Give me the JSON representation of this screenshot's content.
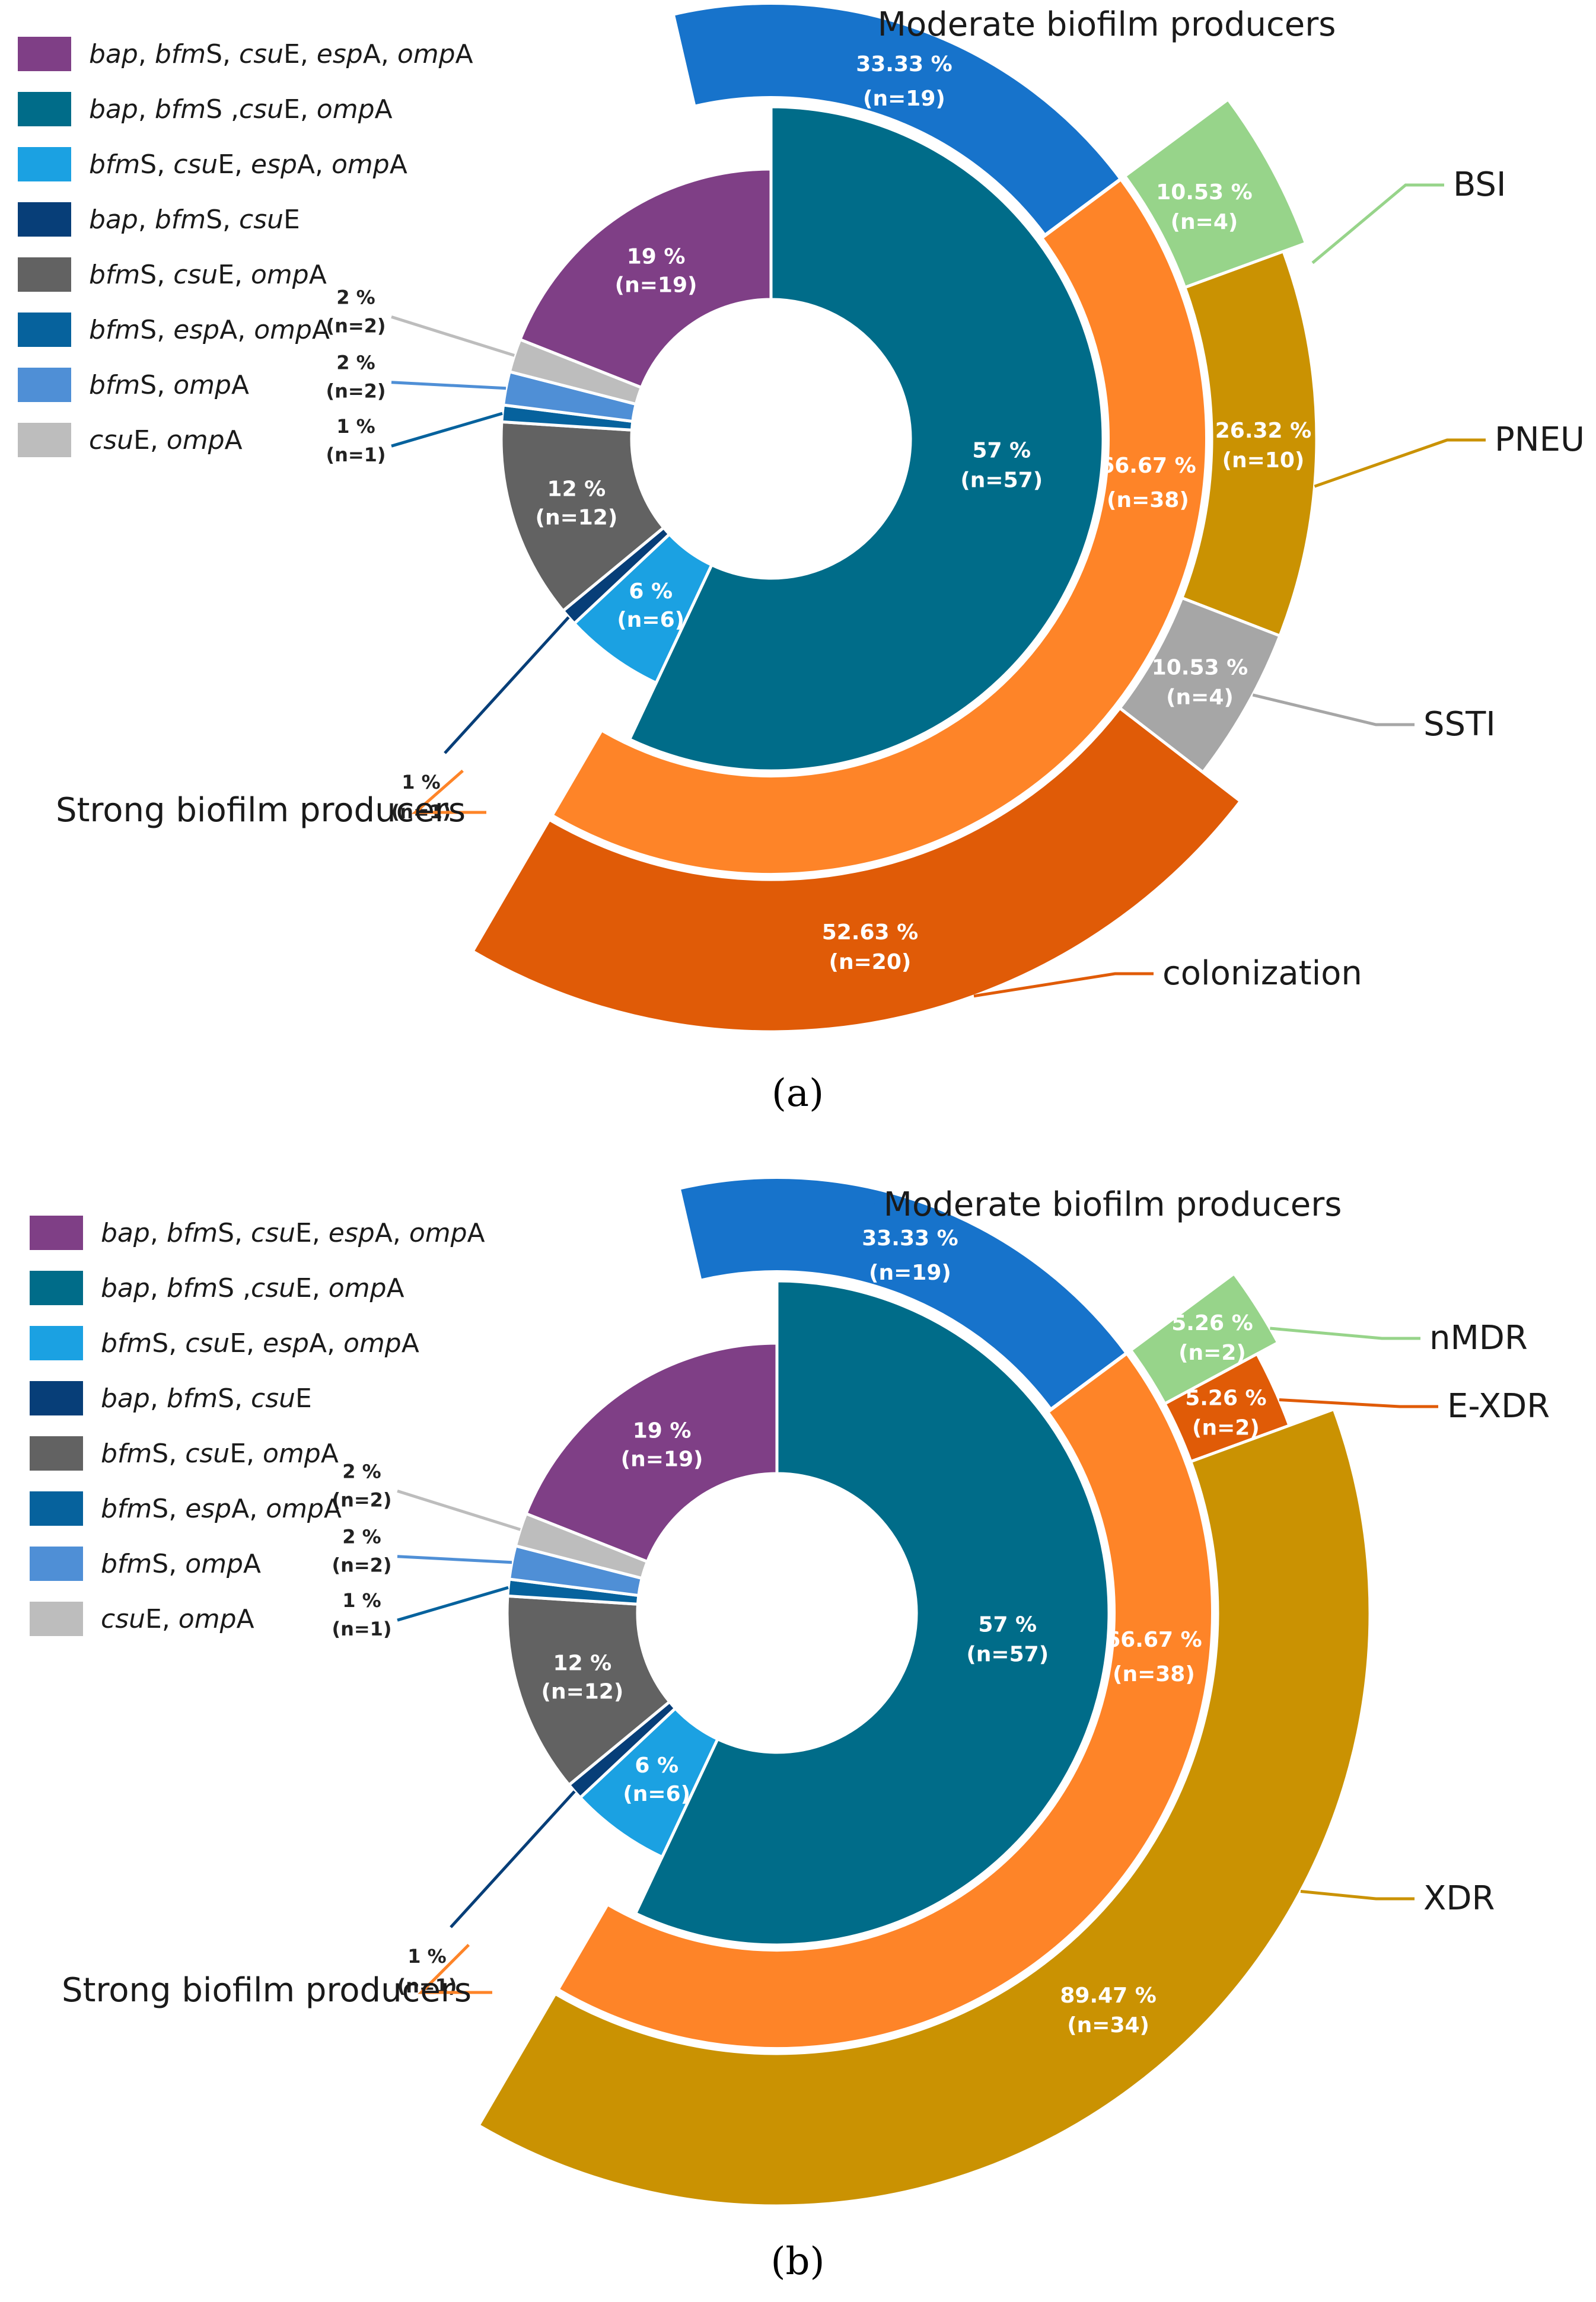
{
  "colors": {
    "bap_bfmS_csuE_espA_ompA": "#7F3F86",
    "bap_bfmS_csuE_ompA": "#006C89",
    "bfmS_csuE_espA_ompA": "#1BA1E2",
    "bap_bfmS_csuE": "#073E78",
    "bfmS_csuE_ompA": "#626262",
    "bfmS_espA_ompA": "#06629D",
    "bfmS_ompA": "#4F8FD6",
    "csuE_ompA": "#BDBDBD",
    "moderate": "#1773CB",
    "strong": "#FE8428",
    "BSI": "#97D48A",
    "PNEU": "#CA9202",
    "SSTI": "#A6A6A6",
    "colonization": "#E05B07",
    "nMDR": "#97D48A",
    "E_XDR": "#E05B07",
    "XDR": "#CA9202"
  },
  "legend": [
    {
      "key": "bap_bfmS_csuE_espA_ompA",
      "parts": [
        [
          "bap",
          1
        ],
        [
          ", ",
          0
        ],
        [
          "bfm",
          1
        ],
        [
          "S, ",
          0
        ],
        [
          "csu",
          1
        ],
        [
          "E, ",
          0
        ],
        [
          "esp",
          1
        ],
        [
          "A, ",
          0
        ],
        [
          "omp",
          1
        ],
        [
          "A",
          0
        ]
      ]
    },
    {
      "key": "bap_bfmS_csuE_ompA",
      "parts": [
        [
          "bap",
          1
        ],
        [
          ", ",
          0
        ],
        [
          "bfm",
          1
        ],
        [
          "S ,",
          0
        ],
        [
          "csu",
          1
        ],
        [
          "E, ",
          0
        ],
        [
          "omp",
          1
        ],
        [
          "A",
          0
        ]
      ]
    },
    {
      "key": "bfmS_csuE_espA_ompA",
      "parts": [
        [
          "bfm",
          1
        ],
        [
          "S, ",
          0
        ],
        [
          "csu",
          1
        ],
        [
          "E, ",
          0
        ],
        [
          "esp",
          1
        ],
        [
          "A, ",
          0
        ],
        [
          "omp",
          1
        ],
        [
          "A",
          0
        ]
      ]
    },
    {
      "key": "bap_bfmS_csuE",
      "parts": [
        [
          "bap",
          1
        ],
        [
          ", ",
          0
        ],
        [
          "bfm",
          1
        ],
        [
          "S, ",
          0
        ],
        [
          "csu",
          1
        ],
        [
          "E",
          0
        ]
      ]
    },
    {
      "key": "bfmS_csuE_ompA",
      "parts": [
        [
          "bfm",
          1
        ],
        [
          "S, ",
          0
        ],
        [
          "csu",
          1
        ],
        [
          "E, ",
          0
        ],
        [
          "omp",
          1
        ],
        [
          "A",
          0
        ]
      ]
    },
    {
      "key": "bfmS_espA_ompA",
      "parts": [
        [
          "bfm",
          1
        ],
        [
          "S, ",
          0
        ],
        [
          "esp",
          1
        ],
        [
          "A, ",
          0
        ],
        [
          "omp",
          1
        ],
        [
          "A",
          0
        ]
      ]
    },
    {
      "key": "bfmS_ompA",
      "parts": [
        [
          "bfm",
          1
        ],
        [
          "S, ",
          0
        ],
        [
          "omp",
          1
        ],
        [
          "A",
          0
        ]
      ]
    },
    {
      "key": "csuE_ompA",
      "parts": [
        [
          "csu",
          1
        ],
        [
          "E, ",
          0
        ],
        [
          "omp",
          1
        ],
        [
          "A",
          0
        ]
      ]
    }
  ],
  "chart_data": [
    {
      "panel": "(a)",
      "type": "sunburst",
      "genotype_ring": [
        {
          "key": "bap_bfmS_csuE_ompA",
          "pct": "57 %",
          "n": "(n=57)",
          "value": 57
        },
        {
          "key": "bfmS_csuE_espA_ompA",
          "pct": "6 %",
          "n": "(n=6)",
          "value": 6
        },
        {
          "key": "bap_bfmS_csuE",
          "pct": "",
          "n": "",
          "value": 1
        },
        {
          "key": "bfmS_csuE_ompA",
          "pct": "12 %",
          "n": "(n=12)",
          "value": 12
        },
        {
          "key": "bfmS_espA_ompA",
          "pct": "1 %",
          "n": "(n=1)",
          "value": 1
        },
        {
          "key": "bfmS_ompA",
          "pct": "2 %",
          "n": "(n=2)",
          "value": 2
        },
        {
          "key": "csuE_ompA",
          "pct": "2 %",
          "n": "(n=2)",
          "value": 2
        },
        {
          "key": "bap_bfmS_csuE_espA_ompA",
          "pct": "19 %",
          "n": "(n=19)",
          "value": 19
        }
      ],
      "extra_callout": {
        "pct": "1 %",
        "n": "(n=1)"
      },
      "producer_ring": [
        {
          "name": "Moderate biofilm producers",
          "color": "moderate",
          "pct": "33.33 %",
          "n": "(n=19)",
          "value": 19
        },
        {
          "name": "Strong biofilm producers",
          "color": "strong",
          "pct": "66.67 %",
          "n": "(n=38)",
          "value": 38
        }
      ],
      "outer_ring": [
        {
          "name": "BSI",
          "color": "BSI",
          "pct": "10.53 %",
          "n": "(n=4)",
          "value": 4
        },
        {
          "name": "PNEU",
          "color": "PNEU",
          "pct": "26.32 %",
          "n": "(n=10)",
          "value": 10
        },
        {
          "name": "SSTI",
          "color": "SSTI",
          "pct": "10.53 %",
          "n": "(n=4)",
          "value": 4
        },
        {
          "name": "colonization",
          "color": "colonization",
          "pct": "52.63 %",
          "n": "(n=20)",
          "value": 20
        }
      ]
    },
    {
      "panel": "(b)",
      "type": "sunburst",
      "genotype_ring": [
        {
          "key": "bap_bfmS_csuE_ompA",
          "pct": "57 %",
          "n": "(n=57)",
          "value": 57
        },
        {
          "key": "bfmS_csuE_espA_ompA",
          "pct": "6 %",
          "n": "(n=6)",
          "value": 6
        },
        {
          "key": "bap_bfmS_csuE",
          "pct": "",
          "n": "",
          "value": 1
        },
        {
          "key": "bfmS_csuE_ompA",
          "pct": "12 %",
          "n": "(n=12)",
          "value": 12
        },
        {
          "key": "bfmS_espA_ompA",
          "pct": "1 %",
          "n": "(n=1)",
          "value": 1
        },
        {
          "key": "bfmS_ompA",
          "pct": "2 %",
          "n": "(n=2)",
          "value": 2
        },
        {
          "key": "csuE_ompA",
          "pct": "2 %",
          "n": "(n=2)",
          "value": 2
        },
        {
          "key": "bap_bfmS_csuE_espA_ompA",
          "pct": "19 %",
          "n": "(n=19)",
          "value": 19
        }
      ],
      "extra_callout": {
        "pct": "1 %",
        "n": "(n=1)"
      },
      "producer_ring": [
        {
          "name": "Moderate biofilm producers",
          "color": "moderate",
          "pct": "33.33 %",
          "n": "(n=19)",
          "value": 19
        },
        {
          "name": "Strong biofilm producers",
          "color": "strong",
          "pct": "66.67 %",
          "n": "(n=38)",
          "value": 38
        }
      ],
      "outer_ring": [
        {
          "name": "nMDR",
          "color": "nMDR",
          "pct": "5.26 %",
          "n": "(n=2)",
          "value": 2
        },
        {
          "name": "E-XDR",
          "color": "E_XDR",
          "pct": "5.26 %",
          "n": "(n=2)",
          "value": 2
        },
        {
          "name": "XDR",
          "color": "XDR",
          "pct": "89.47 %",
          "n": "(n=34)",
          "value": 34
        }
      ]
    }
  ]
}
